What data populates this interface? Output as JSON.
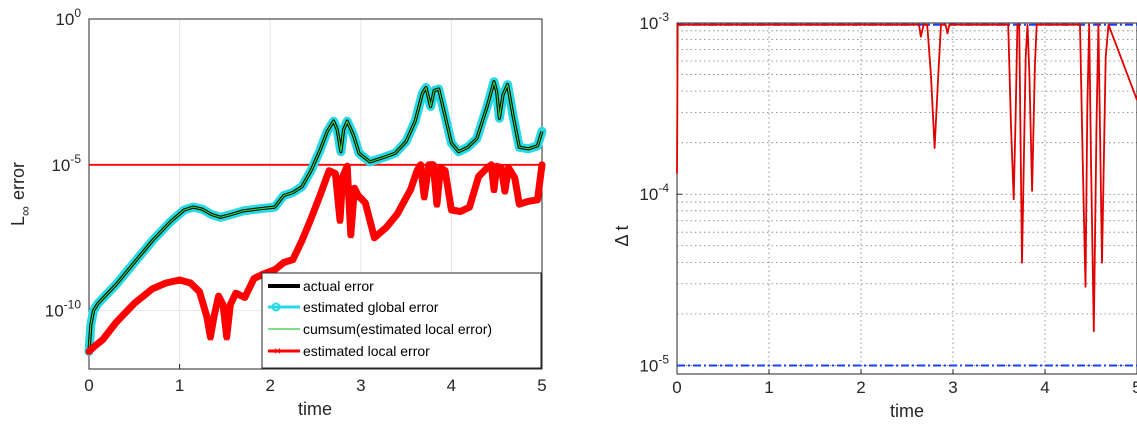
{
  "chart_data": [
    {
      "type": "line",
      "yscale": "log",
      "xlim": [
        0,
        5
      ],
      "ylim_exp": [
        -12,
        0
      ],
      "x_ticks": [
        0,
        1,
        2,
        3,
        4,
        5
      ],
      "x_tick_labels": [
        "0",
        "1",
        "2",
        "3",
        "4",
        "5"
      ],
      "y_ticks_exp": [
        -10,
        -5,
        0
      ],
      "y_tick_base": "10",
      "y_tick_exponents": [
        "-10",
        "-5",
        "0"
      ],
      "xlabel": "time",
      "ylabel": "L",
      "ylabel_sub": "∞",
      "ylabel_rest": "error",
      "grid": true,
      "legend_position": "bottom-right",
      "threshold": {
        "log10": -5,
        "color": "#ff0000"
      },
      "series": [
        {
          "name": "actual error",
          "color": "#000000",
          "log10_points": [
            [
              0,
              -11.4
            ],
            [
              0.02,
              -10.5
            ],
            [
              0.05,
              -10.0
            ],
            [
              0.1,
              -9.75
            ],
            [
              0.3,
              -9.1
            ],
            [
              0.5,
              -8.35
            ],
            [
              0.7,
              -7.6
            ],
            [
              0.9,
              -6.95
            ],
            [
              1.05,
              -6.55
            ],
            [
              1.15,
              -6.45
            ],
            [
              1.25,
              -6.52
            ],
            [
              1.35,
              -6.7
            ],
            [
              1.45,
              -6.8
            ],
            [
              1.55,
              -6.72
            ],
            [
              1.7,
              -6.58
            ],
            [
              1.9,
              -6.5
            ],
            [
              2.05,
              -6.45
            ],
            [
              2.15,
              -6.05
            ],
            [
              2.25,
              -5.95
            ],
            [
              2.35,
              -5.75
            ],
            [
              2.45,
              -5.2
            ],
            [
              2.55,
              -4.5
            ],
            [
              2.63,
              -3.85
            ],
            [
              2.7,
              -3.5
            ],
            [
              2.74,
              -3.8
            ],
            [
              2.78,
              -4.55
            ],
            [
              2.81,
              -3.8
            ],
            [
              2.85,
              -3.5
            ],
            [
              2.92,
              -4.0
            ],
            [
              2.98,
              -4.6
            ],
            [
              3.1,
              -4.9
            ],
            [
              3.25,
              -4.75
            ],
            [
              3.38,
              -4.6
            ],
            [
              3.5,
              -4.2
            ],
            [
              3.6,
              -3.5
            ],
            [
              3.68,
              -2.55
            ],
            [
              3.72,
              -2.35
            ],
            [
              3.77,
              -3.0
            ],
            [
              3.81,
              -2.45
            ],
            [
              3.86,
              -2.4
            ],
            [
              3.92,
              -3.2
            ],
            [
              4.0,
              -4.25
            ],
            [
              4.08,
              -4.55
            ],
            [
              4.18,
              -4.4
            ],
            [
              4.28,
              -4.1
            ],
            [
              4.4,
              -2.95
            ],
            [
              4.47,
              -2.15
            ],
            [
              4.5,
              -2.5
            ],
            [
              4.53,
              -3.4
            ],
            [
              4.57,
              -2.6
            ],
            [
              4.62,
              -2.25
            ],
            [
              4.68,
              -3.3
            ],
            [
              4.75,
              -4.4
            ],
            [
              4.85,
              -4.45
            ],
            [
              4.95,
              -4.35
            ],
            [
              5.0,
              -3.85
            ]
          ]
        },
        {
          "name": "estimated global error",
          "color": "#26d9e3"
        },
        {
          "name": "cumsum(estimated local error)",
          "color": "#2ecc40"
        },
        {
          "name": "estimated local error",
          "color": "#ff0000",
          "log10_points": [
            [
              0,
              -11.4
            ],
            [
              0.05,
              -11.25
            ],
            [
              0.15,
              -11.0
            ],
            [
              0.3,
              -10.4
            ],
            [
              0.5,
              -9.75
            ],
            [
              0.7,
              -9.25
            ],
            [
              0.85,
              -9.05
            ],
            [
              1.0,
              -8.95
            ],
            [
              1.12,
              -9.05
            ],
            [
              1.22,
              -9.35
            ],
            [
              1.3,
              -10.2
            ],
            [
              1.34,
              -10.9
            ],
            [
              1.38,
              -10.2
            ],
            [
              1.43,
              -9.5
            ],
            [
              1.48,
              -9.8
            ],
            [
              1.52,
              -10.9
            ],
            [
              1.56,
              -9.8
            ],
            [
              1.62,
              -9.4
            ],
            [
              1.72,
              -9.55
            ],
            [
              1.82,
              -8.9
            ],
            [
              1.92,
              -8.75
            ],
            [
              2.05,
              -8.6
            ],
            [
              2.15,
              -8.35
            ],
            [
              2.25,
              -8.25
            ],
            [
              2.35,
              -7.6
            ],
            [
              2.45,
              -6.85
            ],
            [
              2.55,
              -6.05
            ],
            [
              2.62,
              -5.45
            ],
            [
              2.65,
              -5.2
            ],
            [
              2.72,
              -5.3
            ],
            [
              2.77,
              -6.9
            ],
            [
              2.8,
              -5.4
            ],
            [
              2.85,
              -5.05
            ],
            [
              2.89,
              -7.4
            ],
            [
              2.93,
              -5.8
            ],
            [
              2.97,
              -6.05
            ],
            [
              3.05,
              -6.3
            ],
            [
              3.15,
              -7.5
            ],
            [
              3.28,
              -7.15
            ],
            [
              3.4,
              -6.7
            ],
            [
              3.55,
              -5.85
            ],
            [
              3.62,
              -5.2
            ],
            [
              3.66,
              -5.0
            ],
            [
              3.7,
              -6.1
            ],
            [
              3.75,
              -5.0
            ],
            [
              3.8,
              -5.0
            ],
            [
              3.84,
              -6.35
            ],
            [
              3.88,
              -5.1
            ],
            [
              3.93,
              -5.2
            ],
            [
              4.0,
              -6.55
            ],
            [
              4.1,
              -6.6
            ],
            [
              4.2,
              -6.45
            ],
            [
              4.3,
              -5.4
            ],
            [
              4.38,
              -5.15
            ],
            [
              4.44,
              -5.0
            ],
            [
              4.47,
              -5.85
            ],
            [
              4.5,
              -5.05
            ],
            [
              4.55,
              -5.1
            ],
            [
              4.59,
              -5.9
            ],
            [
              4.63,
              -5.1
            ],
            [
              4.7,
              -5.45
            ],
            [
              4.75,
              -6.35
            ],
            [
              4.85,
              -6.25
            ],
            [
              4.95,
              -6.2
            ],
            [
              5.0,
              -5.0
            ]
          ]
        }
      ]
    },
    {
      "type": "line",
      "yscale": "log",
      "xlim": [
        0,
        5
      ],
      "ylim_exp": [
        -5.05,
        -3
      ],
      "x_ticks": [
        0,
        1,
        2,
        3,
        4,
        5
      ],
      "x_tick_labels": [
        "0",
        "1",
        "2",
        "3",
        "4",
        "5"
      ],
      "y_ticks_exp": [
        -5,
        -4,
        -3
      ],
      "y_tick_base": "10",
      "y_tick_exponents": [
        "-5",
        "-4",
        "-3"
      ],
      "xlabel": "time",
      "ylabel": "Δ t",
      "grid": "dotted",
      "bounds": [
        {
          "log10": -3.01,
          "color": "#1f3fff"
        },
        {
          "log10": -5.0,
          "color": "#1f3fff"
        }
      ],
      "series": [
        {
          "color": "#e00000",
          "log10_points": [
            [
              0,
              -3.88
            ],
            [
              0.003,
              -3.5
            ],
            [
              0.008,
              -3.01
            ],
            [
              2.63,
              -3.01
            ],
            [
              2.65,
              -3.08
            ],
            [
              2.68,
              -3.01
            ],
            [
              2.72,
              -3.01
            ],
            [
              2.76,
              -3.3
            ],
            [
              2.8,
              -3.73
            ],
            [
              2.84,
              -3.3
            ],
            [
              2.87,
              -3.01
            ],
            [
              2.92,
              -3.01
            ],
            [
              2.94,
              -3.06
            ],
            [
              2.96,
              -3.01
            ],
            [
              3.6,
              -3.01
            ],
            [
              3.63,
              -3.6
            ],
            [
              3.66,
              -4.03
            ],
            [
              3.68,
              -3.55
            ],
            [
              3.7,
              -3.01
            ],
            [
              3.72,
              -3.01
            ],
            [
              3.75,
              -4.4
            ],
            [
              3.79,
              -3.2
            ],
            [
              3.81,
              -3.01
            ],
            [
              3.83,
              -3.3
            ],
            [
              3.86,
              -3.98
            ],
            [
              3.89,
              -3.25
            ],
            [
              3.91,
              -3.01
            ],
            [
              4.38,
              -3.01
            ],
            [
              4.41,
              -3.8
            ],
            [
              4.44,
              -4.54
            ],
            [
              4.46,
              -3.5
            ],
            [
              4.48,
              -3.01
            ],
            [
              4.5,
              -3.8
            ],
            [
              4.53,
              -4.8
            ],
            [
              4.56,
              -3.6
            ],
            [
              4.58,
              -3.01
            ],
            [
              4.62,
              -4.4
            ],
            [
              4.66,
              -3.2
            ],
            [
              4.69,
              -3.01
            ],
            [
              5.0,
              -3.45
            ]
          ]
        }
      ]
    }
  ]
}
